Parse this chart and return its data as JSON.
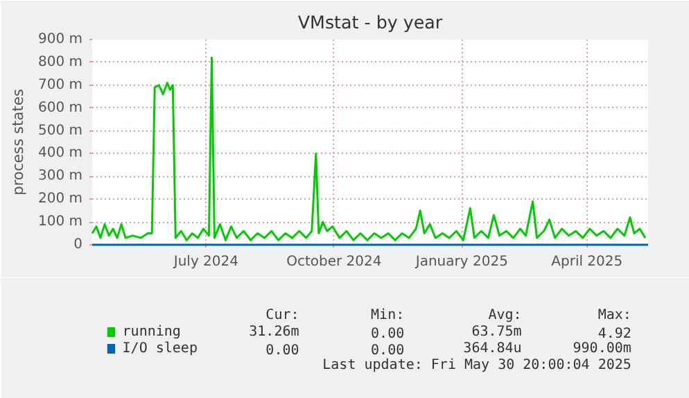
{
  "chart_data": {
    "type": "line",
    "title": "VMstat - by year",
    "ylabel": "process states",
    "xlim": [
      "2024-04-25",
      "2025-05-30"
    ],
    "xticks": [
      {
        "value": "2024-07-16",
        "label": "July 2024"
      },
      {
        "value": "2024-10-16",
        "label": "October 2024"
      },
      {
        "value": "2025-01-16",
        "label": "January 2025"
      },
      {
        "value": "2025-04-16",
        "label": "April 2025"
      }
    ],
    "ylim": [
      0,
      900
    ],
    "yticks": [
      0,
      {
        "value": 100,
        "label": "100 m"
      },
      {
        "value": 200,
        "label": "200 m"
      },
      {
        "value": 300,
        "label": "300 m"
      },
      {
        "value": 400,
        "label": "400 m"
      },
      {
        "value": 500,
        "label": "500 m"
      },
      {
        "value": 600,
        "label": "600 m"
      },
      {
        "value": 700,
        "label": "700 m"
      },
      {
        "value": 800,
        "label": "800 m"
      },
      {
        "value": 900,
        "label": "900 m"
      }
    ],
    "grid": true,
    "legend": "bottom left",
    "series": [
      {
        "name": "running",
        "color": "#00cc00",
        "x": [
          "2024-04-25",
          "2024-04-28",
          "2024-05-01",
          "2024-05-04",
          "2024-05-07",
          "2024-05-10",
          "2024-05-13",
          "2024-05-16",
          "2024-05-19",
          "2024-05-24",
          "2024-05-30",
          "2024-06-04",
          "2024-06-07",
          "2024-06-09",
          "2024-06-12",
          "2024-06-15",
          "2024-06-18",
          "2024-06-20",
          "2024-06-22",
          "2024-06-24",
          "2024-06-28",
          "2024-07-02",
          "2024-07-06",
          "2024-07-10",
          "2024-07-14",
          "2024-07-18",
          "2024-07-20",
          "2024-07-22",
          "2024-07-26",
          "2024-07-30",
          "2024-08-03",
          "2024-08-07",
          "2024-08-12",
          "2024-08-17",
          "2024-08-22",
          "2024-08-27",
          "2024-09-01",
          "2024-09-06",
          "2024-09-11",
          "2024-09-16",
          "2024-09-21",
          "2024-09-26",
          "2024-09-30",
          "2024-10-03",
          "2024-10-05",
          "2024-10-08",
          "2024-10-11",
          "2024-10-15",
          "2024-10-20",
          "2024-10-25",
          "2024-10-30",
          "2024-11-04",
          "2024-11-09",
          "2024-11-14",
          "2024-11-19",
          "2024-11-24",
          "2024-11-29",
          "2024-12-04",
          "2024-12-09",
          "2024-12-14",
          "2024-12-17",
          "2024-12-20",
          "2024-12-24",
          "2024-12-28",
          "2025-01-02",
          "2025-01-07",
          "2025-01-12",
          "2025-01-17",
          "2025-01-22",
          "2025-01-25",
          "2025-01-30",
          "2025-02-04",
          "2025-02-08",
          "2025-02-12",
          "2025-02-17",
          "2025-02-22",
          "2025-02-27",
          "2025-03-03",
          "2025-03-08",
          "2025-03-11",
          "2025-03-16",
          "2025-03-20",
          "2025-03-24",
          "2025-03-29",
          "2025-04-03",
          "2025-04-08",
          "2025-04-13",
          "2025-04-18",
          "2025-04-23",
          "2025-04-28",
          "2025-05-03",
          "2025-05-08",
          "2025-05-13",
          "2025-05-17",
          "2025-05-20",
          "2025-05-24",
          "2025-05-28"
        ],
        "values": [
          50,
          80,
          30,
          90,
          40,
          70,
          30,
          90,
          30,
          40,
          30,
          50,
          50,
          690,
          700,
          660,
          710,
          680,
          700,
          30,
          60,
          20,
          50,
          30,
          70,
          40,
          820,
          30,
          90,
          20,
          80,
          30,
          60,
          20,
          50,
          30,
          60,
          20,
          50,
          30,
          60,
          30,
          60,
          400,
          50,
          100,
          60,
          80,
          30,
          60,
          20,
          50,
          20,
          50,
          30,
          50,
          20,
          50,
          30,
          70,
          150,
          50,
          90,
          30,
          50,
          30,
          60,
          20,
          160,
          30,
          60,
          30,
          130,
          40,
          60,
          30,
          70,
          40,
          190,
          30,
          60,
          110,
          30,
          70,
          40,
          60,
          30,
          70,
          40,
          60,
          30,
          70,
          40,
          120,
          50,
          70,
          30
        ]
      },
      {
        "name": "I/O sleep",
        "color": "#0066b3",
        "x": [
          "2024-04-25",
          "2025-05-30"
        ],
        "values": [
          0,
          0
        ]
      }
    ],
    "annotations": [
      "Cur:",
      "Min:",
      "Avg:",
      "Max:",
      "31.26m",
      "0.00",
      "63.75m",
      "4.92",
      "0.00",
      "0.00",
      "364.84u",
      "990.00m",
      "Last update: Fri May 30 20:00:04 2025"
    ]
  }
}
